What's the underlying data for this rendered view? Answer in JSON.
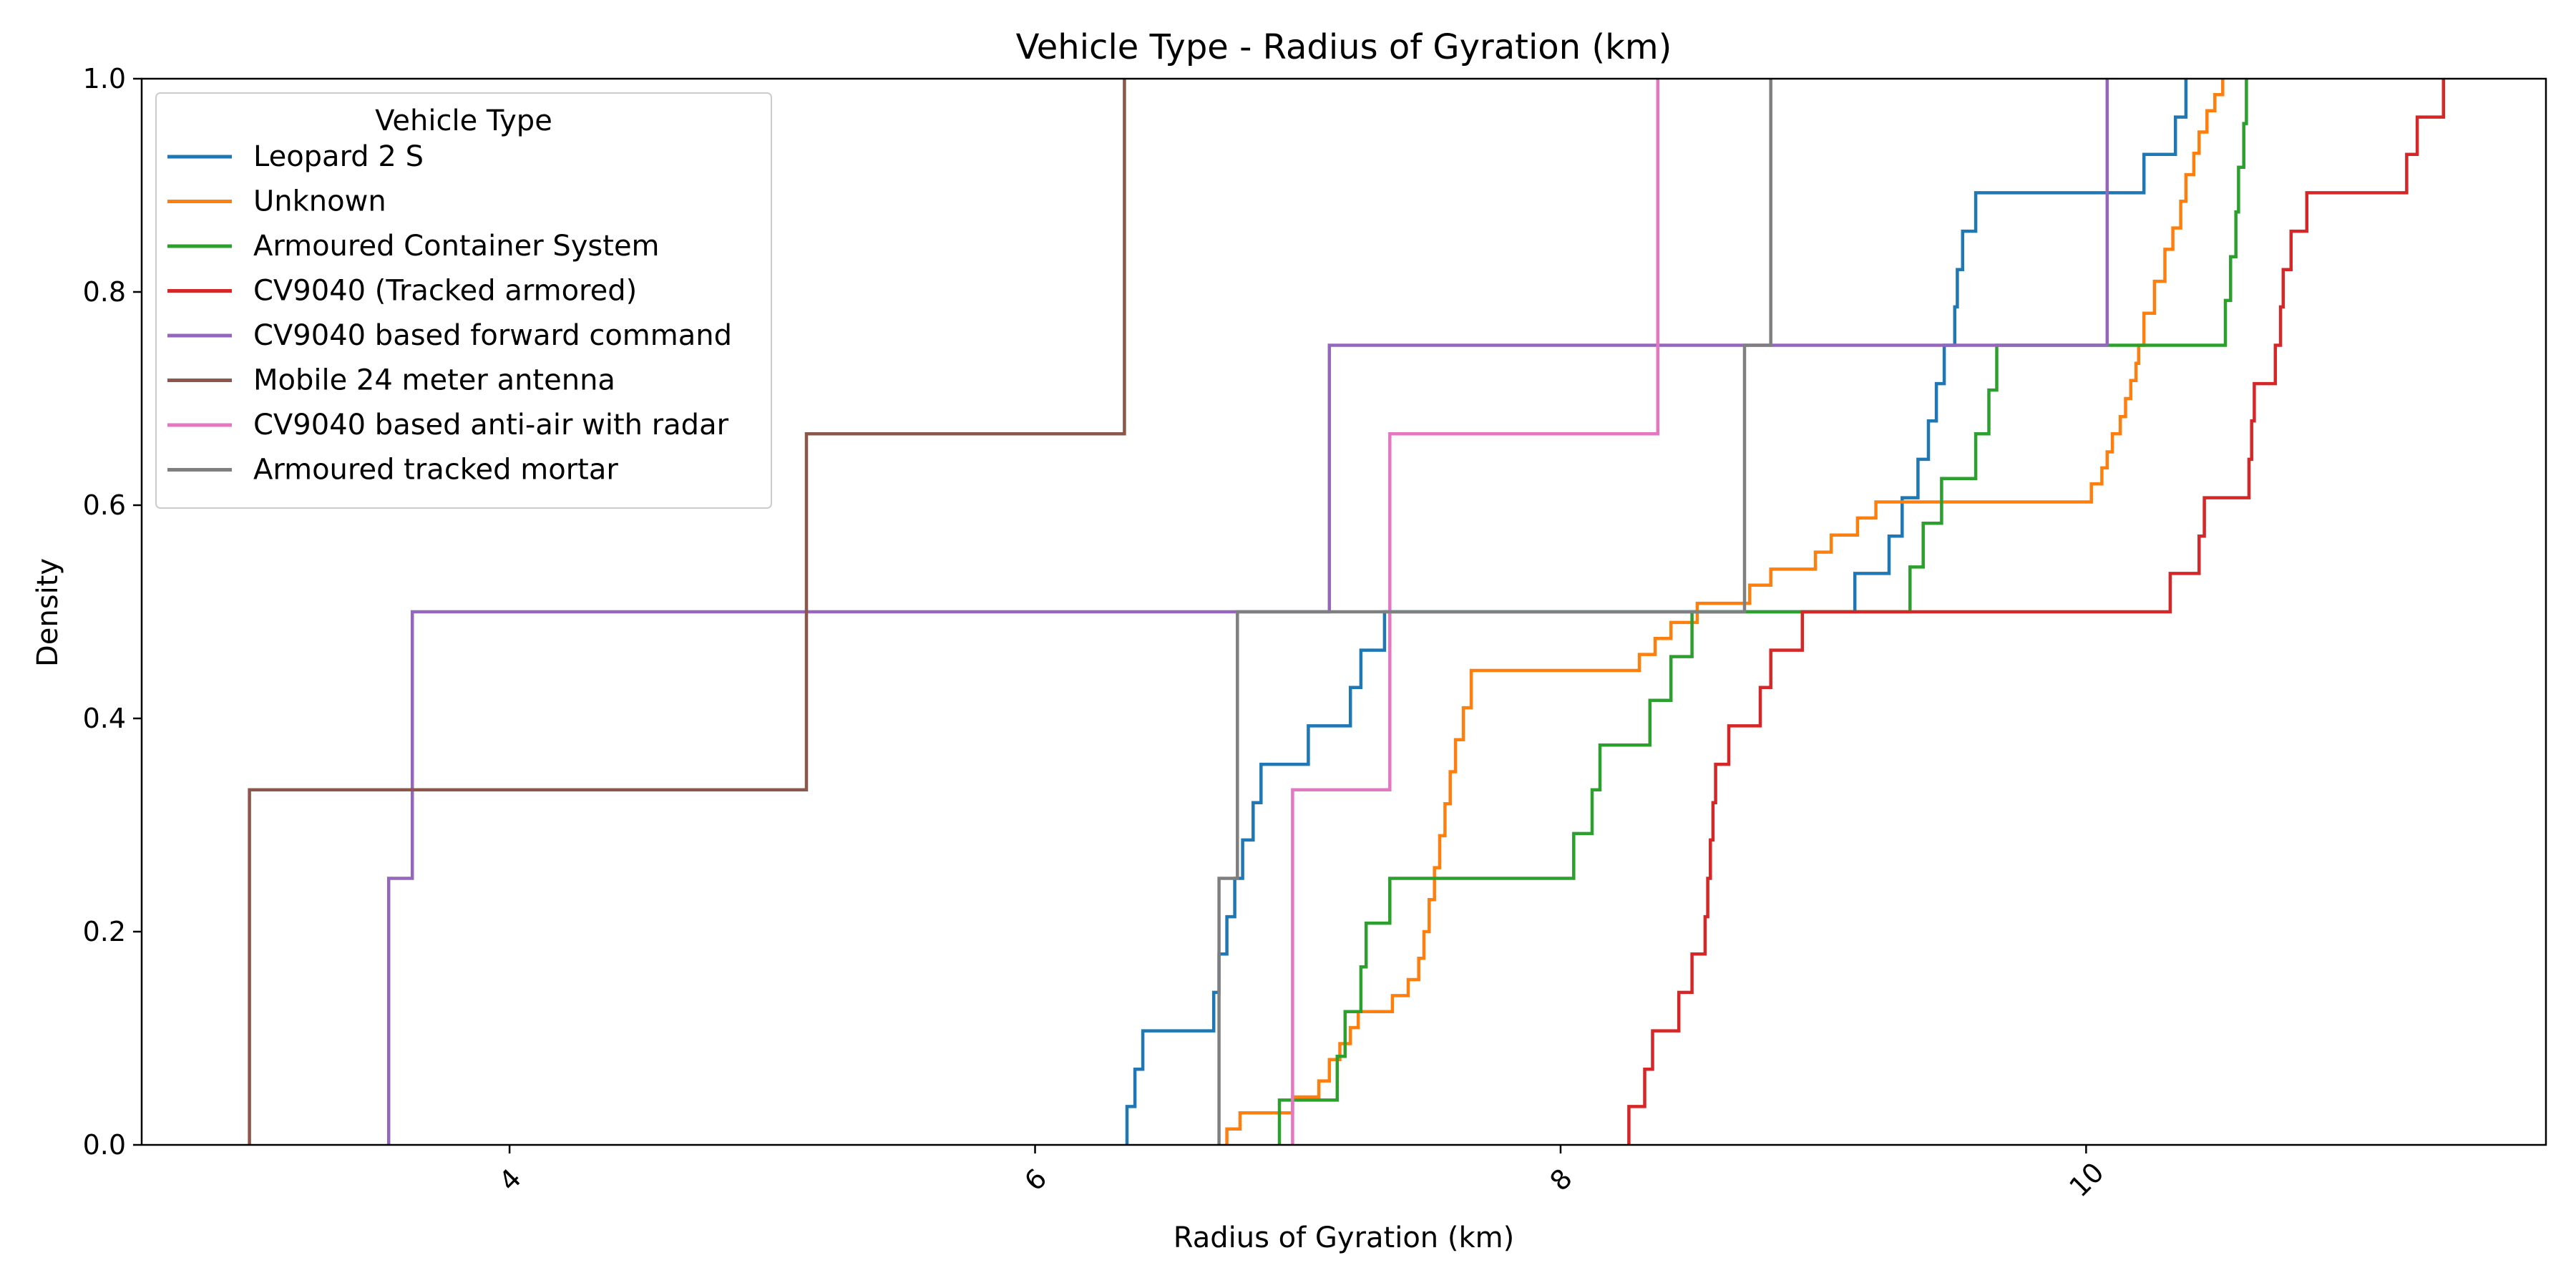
{
  "chart_data": {
    "type": "line",
    "title": "Vehicle Type - Radius of Gyration (km)",
    "xlabel": "Radius of Gyration (km)",
    "ylabel": "Density",
    "xlim": [
      2.6,
      11.75
    ],
    "ylim": [
      0,
      1.0
    ],
    "x_ticks": [
      4,
      6,
      8,
      10
    ],
    "y_ticks": [
      0.0,
      0.2,
      0.4,
      0.6,
      0.8,
      1.0
    ],
    "x_tick_labels": [
      "4",
      "6",
      "8",
      "10"
    ],
    "y_tick_labels": [
      "0.0",
      "0.2",
      "0.4",
      "0.6",
      "0.8",
      "1.0"
    ],
    "grid": false,
    "legend": {
      "title": "Vehicle Type",
      "placement": "upper-left"
    },
    "series": [
      {
        "name": "Leopard 2 S",
        "color": "#1f77b4",
        "points": [
          [
            6.35,
            0
          ],
          [
            6.35,
            0.036
          ],
          [
            6.38,
            0.036
          ],
          [
            6.38,
            0.071
          ],
          [
            6.41,
            0.071
          ],
          [
            6.41,
            0.107
          ],
          [
            6.68,
            0.107
          ],
          [
            6.68,
            0.143
          ],
          [
            6.7,
            0.143
          ],
          [
            6.7,
            0.179
          ],
          [
            6.73,
            0.179
          ],
          [
            6.73,
            0.214
          ],
          [
            6.76,
            0.214
          ],
          [
            6.76,
            0.25
          ],
          [
            6.79,
            0.25
          ],
          [
            6.79,
            0.286
          ],
          [
            6.83,
            0.286
          ],
          [
            6.83,
            0.321
          ],
          [
            6.86,
            0.321
          ],
          [
            6.86,
            0.357
          ],
          [
            7.04,
            0.357
          ],
          [
            7.04,
            0.393
          ],
          [
            7.2,
            0.393
          ],
          [
            7.2,
            0.429
          ],
          [
            7.24,
            0.429
          ],
          [
            7.24,
            0.464
          ],
          [
            7.33,
            0.464
          ],
          [
            7.33,
            0.5
          ],
          [
            9.12,
            0.5
          ],
          [
            9.12,
            0.536
          ],
          [
            9.25,
            0.536
          ],
          [
            9.25,
            0.571
          ],
          [
            9.3,
            0.571
          ],
          [
            9.3,
            0.607
          ],
          [
            9.36,
            0.607
          ],
          [
            9.36,
            0.643
          ],
          [
            9.4,
            0.643
          ],
          [
            9.4,
            0.679
          ],
          [
            9.43,
            0.679
          ],
          [
            9.43,
            0.714
          ],
          [
            9.46,
            0.714
          ],
          [
            9.46,
            0.75
          ],
          [
            9.5,
            0.75
          ],
          [
            9.5,
            0.786
          ],
          [
            9.51,
            0.786
          ],
          [
            9.51,
            0.821
          ],
          [
            9.53,
            0.821
          ],
          [
            9.53,
            0.857
          ],
          [
            9.58,
            0.857
          ],
          [
            9.58,
            0.893
          ],
          [
            10.22,
            0.893
          ],
          [
            10.22,
            0.929
          ],
          [
            10.34,
            0.929
          ],
          [
            10.34,
            0.964
          ],
          [
            10.38,
            0.964
          ],
          [
            10.38,
            1.0
          ]
        ]
      },
      {
        "name": "Unknown",
        "color": "#ff7f0e",
        "points": [
          [
            6.73,
            0
          ],
          [
            6.73,
            0.015
          ],
          [
            6.78,
            0.015
          ],
          [
            6.78,
            0.03
          ],
          [
            6.98,
            0.03
          ],
          [
            6.98,
            0.045
          ],
          [
            7.08,
            0.045
          ],
          [
            7.08,
            0.06
          ],
          [
            7.12,
            0.06
          ],
          [
            7.12,
            0.08
          ],
          [
            7.16,
            0.08
          ],
          [
            7.16,
            0.095
          ],
          [
            7.2,
            0.095
          ],
          [
            7.2,
            0.11
          ],
          [
            7.23,
            0.11
          ],
          [
            7.23,
            0.125
          ],
          [
            7.36,
            0.125
          ],
          [
            7.36,
            0.14
          ],
          [
            7.42,
            0.14
          ],
          [
            7.42,
            0.155
          ],
          [
            7.46,
            0.155
          ],
          [
            7.46,
            0.175
          ],
          [
            7.48,
            0.175
          ],
          [
            7.48,
            0.2
          ],
          [
            7.5,
            0.2
          ],
          [
            7.5,
            0.23
          ],
          [
            7.52,
            0.23
          ],
          [
            7.52,
            0.26
          ],
          [
            7.54,
            0.26
          ],
          [
            7.54,
            0.29
          ],
          [
            7.56,
            0.29
          ],
          [
            7.56,
            0.32
          ],
          [
            7.58,
            0.32
          ],
          [
            7.58,
            0.35
          ],
          [
            7.6,
            0.35
          ],
          [
            7.6,
            0.38
          ],
          [
            7.63,
            0.38
          ],
          [
            7.63,
            0.41
          ],
          [
            7.66,
            0.41
          ],
          [
            7.66,
            0.445
          ],
          [
            8.3,
            0.445
          ],
          [
            8.3,
            0.46
          ],
          [
            8.36,
            0.46
          ],
          [
            8.36,
            0.475
          ],
          [
            8.42,
            0.475
          ],
          [
            8.42,
            0.49
          ],
          [
            8.52,
            0.49
          ],
          [
            8.52,
            0.508
          ],
          [
            8.72,
            0.508
          ],
          [
            8.72,
            0.525
          ],
          [
            8.8,
            0.525
          ],
          [
            8.8,
            0.54
          ],
          [
            8.97,
            0.54
          ],
          [
            8.97,
            0.556
          ],
          [
            9.03,
            0.556
          ],
          [
            9.03,
            0.572
          ],
          [
            9.13,
            0.572
          ],
          [
            9.13,
            0.588
          ],
          [
            9.2,
            0.588
          ],
          [
            9.2,
            0.603
          ],
          [
            10.02,
            0.603
          ],
          [
            10.02,
            0.62
          ],
          [
            10.06,
            0.62
          ],
          [
            10.06,
            0.635
          ],
          [
            10.08,
            0.635
          ],
          [
            10.08,
            0.65
          ],
          [
            10.1,
            0.65
          ],
          [
            10.1,
            0.667
          ],
          [
            10.13,
            0.667
          ],
          [
            10.13,
            0.683
          ],
          [
            10.15,
            0.683
          ],
          [
            10.15,
            0.7
          ],
          [
            10.17,
            0.7
          ],
          [
            10.17,
            0.717
          ],
          [
            10.19,
            0.717
          ],
          [
            10.19,
            0.733
          ],
          [
            10.2,
            0.733
          ],
          [
            10.2,
            0.75
          ],
          [
            10.22,
            0.75
          ],
          [
            10.22,
            0.78
          ],
          [
            10.26,
            0.78
          ],
          [
            10.26,
            0.81
          ],
          [
            10.3,
            0.81
          ],
          [
            10.3,
            0.84
          ],
          [
            10.33,
            0.84
          ],
          [
            10.33,
            0.86
          ],
          [
            10.36,
            0.86
          ],
          [
            10.36,
            0.885
          ],
          [
            10.38,
            0.885
          ],
          [
            10.38,
            0.91
          ],
          [
            10.41,
            0.91
          ],
          [
            10.41,
            0.93
          ],
          [
            10.43,
            0.93
          ],
          [
            10.43,
            0.95
          ],
          [
            10.46,
            0.95
          ],
          [
            10.46,
            0.97
          ],
          [
            10.49,
            0.97
          ],
          [
            10.49,
            0.985
          ],
          [
            10.52,
            0.985
          ],
          [
            10.52,
            1.0
          ]
        ]
      },
      {
        "name": "Armoured Container System",
        "color": "#2ca02c",
        "points": [
          [
            6.93,
            0
          ],
          [
            6.93,
            0.042
          ],
          [
            7.15,
            0.042
          ],
          [
            7.15,
            0.083
          ],
          [
            7.18,
            0.083
          ],
          [
            7.18,
            0.125
          ],
          [
            7.24,
            0.125
          ],
          [
            7.24,
            0.167
          ],
          [
            7.26,
            0.167
          ],
          [
            7.26,
            0.208
          ],
          [
            7.35,
            0.208
          ],
          [
            7.35,
            0.25
          ],
          [
            8.05,
            0.25
          ],
          [
            8.05,
            0.292
          ],
          [
            8.12,
            0.292
          ],
          [
            8.12,
            0.333
          ],
          [
            8.15,
            0.333
          ],
          [
            8.15,
            0.375
          ],
          [
            8.34,
            0.375
          ],
          [
            8.34,
            0.417
          ],
          [
            8.42,
            0.417
          ],
          [
            8.42,
            0.458
          ],
          [
            8.5,
            0.458
          ],
          [
            8.5,
            0.5
          ],
          [
            9.33,
            0.5
          ],
          [
            9.33,
            0.542
          ],
          [
            9.38,
            0.542
          ],
          [
            9.38,
            0.583
          ],
          [
            9.45,
            0.583
          ],
          [
            9.45,
            0.625
          ],
          [
            9.58,
            0.625
          ],
          [
            9.58,
            0.667
          ],
          [
            9.63,
            0.667
          ],
          [
            9.63,
            0.708
          ],
          [
            9.66,
            0.708
          ],
          [
            9.66,
            0.75
          ],
          [
            10.53,
            0.75
          ],
          [
            10.53,
            0.792
          ],
          [
            10.55,
            0.792
          ],
          [
            10.55,
            0.833
          ],
          [
            10.57,
            0.833
          ],
          [
            10.57,
            0.875
          ],
          [
            10.58,
            0.875
          ],
          [
            10.58,
            0.917
          ],
          [
            10.6,
            0.917
          ],
          [
            10.6,
            0.958
          ],
          [
            10.61,
            0.958
          ],
          [
            10.61,
            1.0
          ]
        ]
      },
      {
        "name": "CV9040 (Tracked armored)",
        "color": "#d62728",
        "points": [
          [
            8.26,
            0
          ],
          [
            8.26,
            0.036
          ],
          [
            8.32,
            0.036
          ],
          [
            8.32,
            0.071
          ],
          [
            8.35,
            0.071
          ],
          [
            8.35,
            0.107
          ],
          [
            8.45,
            0.107
          ],
          [
            8.45,
            0.143
          ],
          [
            8.5,
            0.143
          ],
          [
            8.5,
            0.179
          ],
          [
            8.55,
            0.179
          ],
          [
            8.55,
            0.214
          ],
          [
            8.56,
            0.214
          ],
          [
            8.56,
            0.25
          ],
          [
            8.57,
            0.25
          ],
          [
            8.57,
            0.286
          ],
          [
            8.58,
            0.286
          ],
          [
            8.58,
            0.321
          ],
          [
            8.59,
            0.321
          ],
          [
            8.59,
            0.357
          ],
          [
            8.64,
            0.357
          ],
          [
            8.64,
            0.393
          ],
          [
            8.76,
            0.393
          ],
          [
            8.76,
            0.429
          ],
          [
            8.8,
            0.429
          ],
          [
            8.8,
            0.464
          ],
          [
            8.92,
            0.464
          ],
          [
            8.92,
            0.5
          ],
          [
            10.32,
            0.5
          ],
          [
            10.32,
            0.536
          ],
          [
            10.43,
            0.536
          ],
          [
            10.43,
            0.571
          ],
          [
            10.45,
            0.571
          ],
          [
            10.45,
            0.607
          ],
          [
            10.62,
            0.607
          ],
          [
            10.62,
            0.643
          ],
          [
            10.63,
            0.643
          ],
          [
            10.63,
            0.679
          ],
          [
            10.64,
            0.679
          ],
          [
            10.64,
            0.714
          ],
          [
            10.72,
            0.714
          ],
          [
            10.72,
            0.75
          ],
          [
            10.74,
            0.75
          ],
          [
            10.74,
            0.786
          ],
          [
            10.75,
            0.786
          ],
          [
            10.75,
            0.821
          ],
          [
            10.78,
            0.821
          ],
          [
            10.78,
            0.857
          ],
          [
            10.84,
            0.857
          ],
          [
            10.84,
            0.893
          ],
          [
            11.22,
            0.893
          ],
          [
            11.22,
            0.929
          ],
          [
            11.26,
            0.929
          ],
          [
            11.26,
            0.964
          ],
          [
            11.36,
            0.964
          ],
          [
            11.36,
            1.0
          ]
        ]
      },
      {
        "name": "CV9040 based forward command",
        "color": "#9467bd",
        "points": [
          [
            3.54,
            0
          ],
          [
            3.54,
            0.25
          ],
          [
            3.63,
            0.25
          ],
          [
            3.63,
            0.5
          ],
          [
            7.12,
            0.5
          ],
          [
            7.12,
            0.75
          ],
          [
            10.08,
            0.75
          ],
          [
            10.08,
            1.0
          ]
        ]
      },
      {
        "name": "Mobile 24 meter antenna",
        "color": "#8c564b",
        "points": [
          [
            3.01,
            0
          ],
          [
            3.01,
            0.333
          ],
          [
            5.13,
            0.333
          ],
          [
            5.13,
            0.667
          ],
          [
            6.34,
            0.667
          ],
          [
            6.34,
            1.0
          ]
        ]
      },
      {
        "name": "CV9040 based anti-air with radar",
        "color": "#e377c2",
        "points": [
          [
            6.98,
            0
          ],
          [
            6.98,
            0.333
          ],
          [
            7.35,
            0.333
          ],
          [
            7.35,
            0.667
          ],
          [
            8.37,
            0.667
          ],
          [
            8.37,
            1.0
          ]
        ]
      },
      {
        "name": "Armoured tracked mortar",
        "color": "#7f7f7f",
        "points": [
          [
            6.7,
            0
          ],
          [
            6.7,
            0.25
          ],
          [
            6.77,
            0.25
          ],
          [
            6.77,
            0.5
          ],
          [
            8.7,
            0.5
          ],
          [
            8.7,
            0.75
          ],
          [
            8.8,
            0.75
          ],
          [
            8.8,
            1.0
          ]
        ]
      }
    ]
  }
}
